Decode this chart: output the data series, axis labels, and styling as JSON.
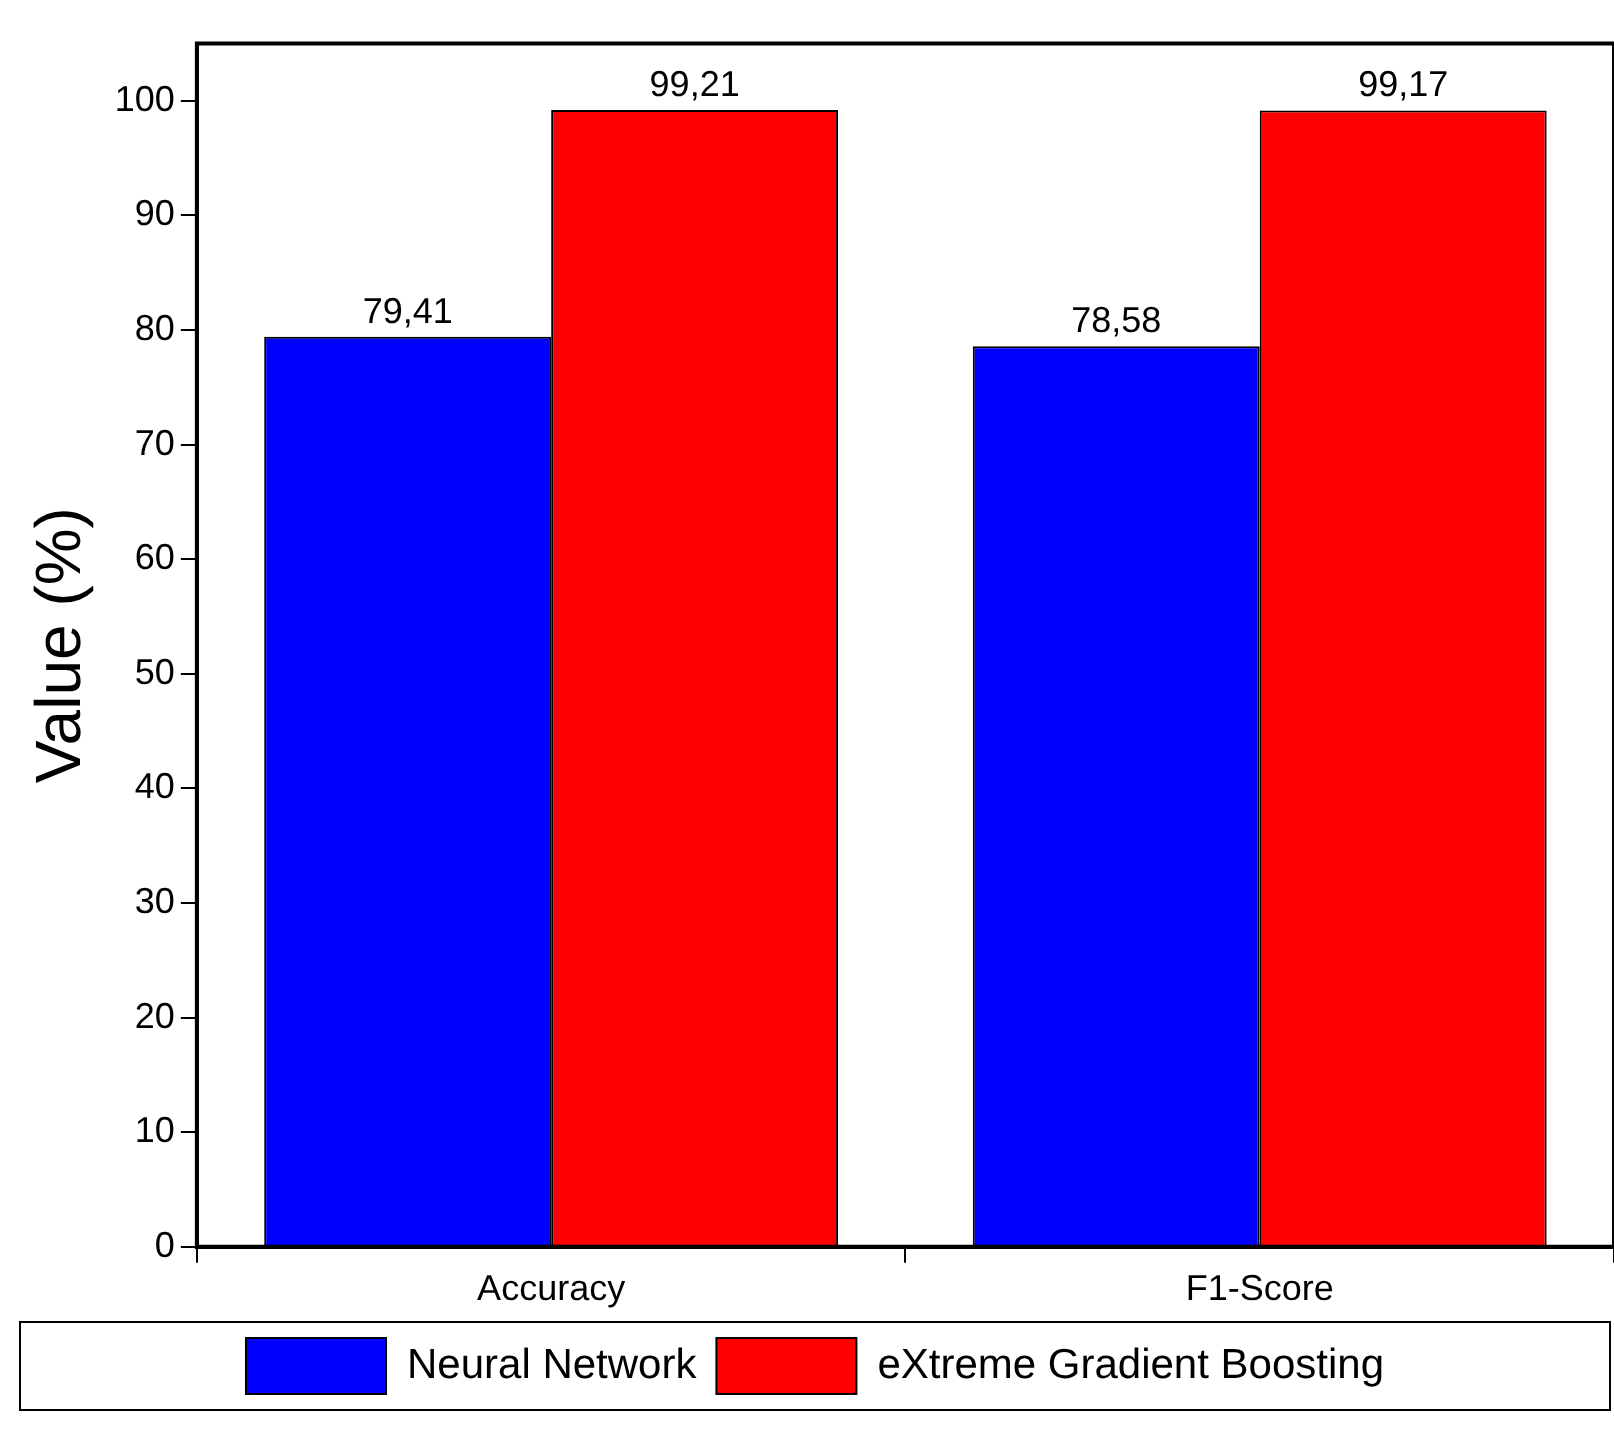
{
  "chart_data": {
    "type": "bar",
    "ylabel": "Value (%)",
    "categories": [
      "Accuracy",
      "F1-Score"
    ],
    "series": [
      {
        "name": "Neural Network",
        "color": "#0000ff",
        "values": [
          79.41,
          78.58
        ],
        "value_labels": [
          "79,41",
          "78,58"
        ]
      },
      {
        "name": "eXtreme Gradient Boosting",
        "color": "#ff0000",
        "values": [
          99.21,
          99.17
        ],
        "value_labels": [
          "99,21",
          "99,17"
        ]
      }
    ],
    "ylim": [
      0,
      105
    ],
    "yticks": [
      0,
      10,
      20,
      30,
      40,
      50,
      60,
      70,
      80,
      90,
      100
    ],
    "grid": false,
    "legend": "bottom"
  }
}
